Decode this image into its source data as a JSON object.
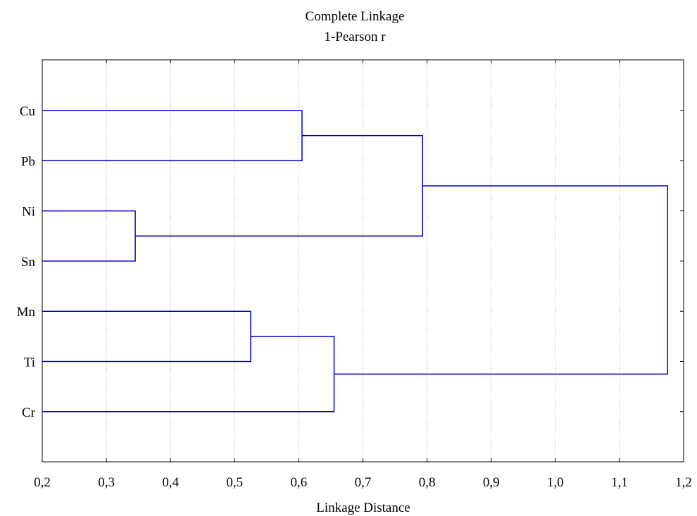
{
  "chart_data": {
    "type": "dendrogram",
    "title": "Complete Linkage",
    "subtitle": "1-Pearson r",
    "xlabel": "Linkage Distance",
    "xlim": [
      0.2,
      1.2
    ],
    "xticks": [
      "0,2",
      "0,3",
      "0,4",
      "0,5",
      "0,6",
      "0,7",
      "0,8",
      "0,9",
      "1,0",
      "1,1",
      "1,2"
    ],
    "grid": "vertical-dotted",
    "line_color": "#0000cc",
    "leaves": [
      "Cu",
      "Pb",
      "Ni",
      "Sn",
      "Mn",
      "Ti",
      "Cr"
    ],
    "merges": [
      {
        "cluster": "C1",
        "left": "Ni",
        "right": "Sn",
        "distance": 0.345
      },
      {
        "cluster": "C2",
        "left": "Mn",
        "right": "Ti",
        "distance": 0.525
      },
      {
        "cluster": "C3",
        "left": "Cu",
        "right": "Pb",
        "distance": 0.605
      },
      {
        "cluster": "C4",
        "left": "C2",
        "right": "Cr",
        "distance": 0.655
      },
      {
        "cluster": "C5",
        "left": "C3",
        "right": "C1",
        "distance": 0.793
      },
      {
        "cluster": "C6",
        "left": "C5",
        "right": "C4",
        "distance": 1.175
      }
    ]
  }
}
